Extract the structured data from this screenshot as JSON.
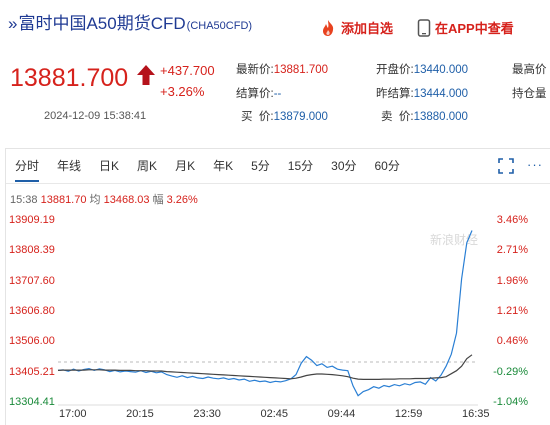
{
  "header": {
    "prefix": "»",
    "title": "富时中国A50期货CFD",
    "code": "(CHA50CFD)",
    "fav_label": "添加自选",
    "app_label": "在APP中查看",
    "fav_icon": "flame-icon",
    "app_icon": "phone-icon"
  },
  "quote": {
    "price": "13881.700",
    "change": "+437.700",
    "change_pct": "+3.26%",
    "datetime": "2024-12-09 15:38:41",
    "direction_icon": "up-arrow-icon",
    "accent": "#d6221c"
  },
  "stats": {
    "latest_label": "最新价:",
    "latest_value": "13881.700",
    "open_label": "开盘价:",
    "open_value": "13440.000",
    "high_label": "最高价",
    "settle_label": "结算价:",
    "settle_value": "--",
    "prev_settle_label": "昨结算:",
    "prev_settle_value": "13444.000",
    "hold_label": "持仓量",
    "buy_label": "买  价:",
    "buy_value": "13879.000",
    "sell_label": "卖  价:",
    "sell_value": "13880.000"
  },
  "tabs": [
    "分时",
    "年线",
    "日K",
    "周K",
    "月K",
    "年K",
    "5分",
    "15分",
    "30分",
    "60分"
  ],
  "active_tab": "分时",
  "chart_info": {
    "time": "15:38",
    "price": "13881.70",
    "avg_label": "均",
    "avg": "13468.03",
    "range_label": "幅",
    "range": "3.26%"
  },
  "watermark": "新浪财经",
  "chart_data": {
    "type": "line",
    "x_ticks": [
      "17:00",
      "20:15",
      "23:30",
      "02:45",
      "09:44",
      "12:59",
      "16:35"
    ],
    "y_ticks_left": [
      "13909.19",
      "13808.39",
      "13707.60",
      "13606.80",
      "13506.00",
      "13405.21",
      "13304.41"
    ],
    "y_ticks_right": [
      "3.46%",
      "2.71%",
      "1.96%",
      "1.21%",
      "0.46%",
      "-0.29%",
      "-1.04%"
    ],
    "ylim": [
      13304.41,
      13909.19
    ],
    "reference_price": 13444.0,
    "series": [
      {
        "color": "#2a7fd4",
        "values": [
          13416,
          13418,
          13413,
          13420,
          13414,
          13419,
          13422,
          13416,
          13421,
          13418,
          13412,
          13416,
          13411,
          13414,
          13412,
          13410,
          13415,
          13409,
          13413,
          13408,
          13411,
          13402,
          13397,
          13393,
          13398,
          13392,
          13396,
          13391,
          13389,
          13394,
          13390,
          13388,
          13391,
          13386,
          13389,
          13384,
          13387,
          13380,
          13383,
          13379,
          13381,
          13376,
          13380,
          13378,
          13382,
          13388,
          13402,
          13440,
          13462,
          13450,
          13432,
          13438,
          13426,
          13430,
          13420,
          13417,
          13415,
          13365,
          13332,
          13346,
          13352,
          13362,
          13357,
          13366,
          13362,
          13369,
          13365,
          13372,
          13368,
          13376,
          13378,
          13370,
          13392,
          13381,
          13400,
          13430,
          13470,
          13540,
          13720,
          13840,
          13881
        ]
      },
      {
        "color": "#444444",
        "values": [
          13416,
          13417,
          13417,
          13417,
          13417,
          13417,
          13418,
          13418,
          13418,
          13417,
          13417,
          13417,
          13416,
          13416,
          13416,
          13415,
          13415,
          13415,
          13414,
          13414,
          13414,
          13412,
          13411,
          13410,
          13409,
          13408,
          13407,
          13406,
          13405,
          13404,
          13403,
          13402,
          13401,
          13400,
          13399,
          13398,
          13397,
          13396,
          13395,
          13394,
          13393,
          13392,
          13391,
          13390,
          13389,
          13388,
          13390,
          13394,
          13399,
          13402,
          13404,
          13404,
          13403,
          13402,
          13400,
          13398,
          13395,
          13390,
          13387,
          13386,
          13386,
          13386,
          13386,
          13387,
          13387,
          13387,
          13388,
          13388,
          13388,
          13389,
          13389,
          13389,
          13390,
          13391,
          13392,
          13395,
          13405,
          13415,
          13430,
          13455,
          13468
        ]
      }
    ]
  }
}
